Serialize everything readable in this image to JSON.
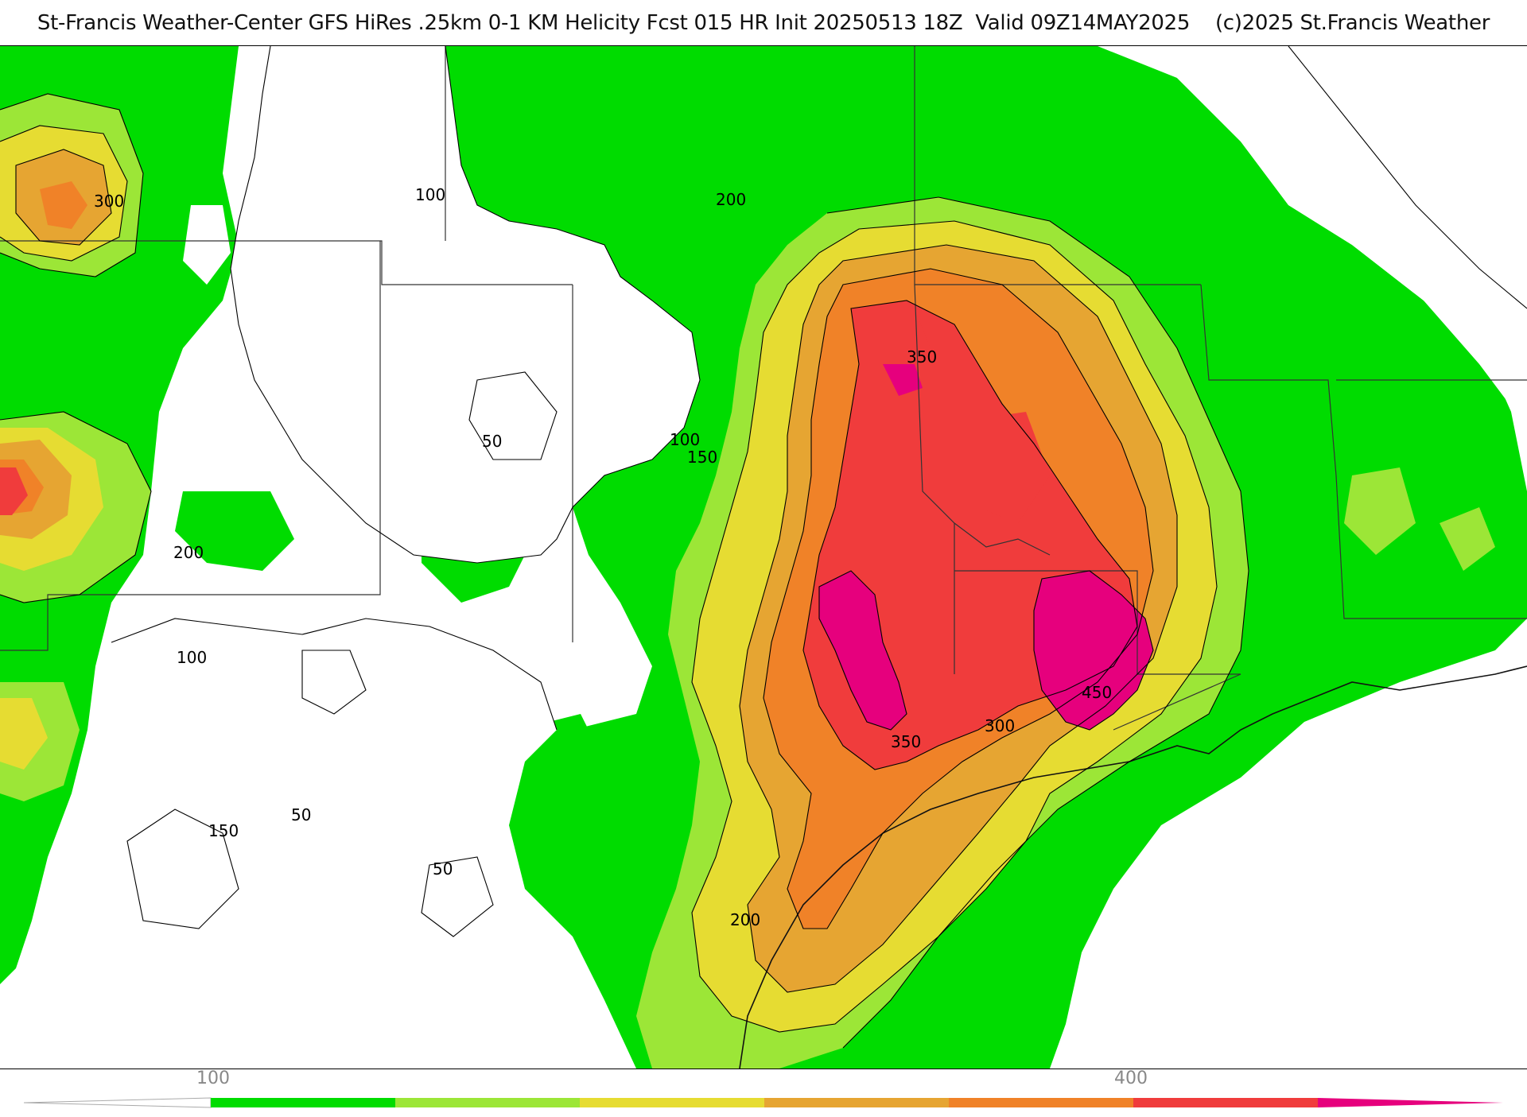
{
  "title": "St-Francis Weather-Center GFS HiRes .25km 0-1 KM Helicity Fcst 015 HR Init 20250513 18Z  Valid 09Z14MAY2025    (c)2025 St.Francis Weather",
  "colors": {
    "c100": "#00dc00",
    "c150": "#9ce637",
    "c200": "#e6dc32",
    "c250": "#e6a532",
    "c300": "#f08228",
    "c350": "#f03c3c",
    "c400": "#e6007d",
    "background": "#ffffff",
    "contour": "#000000",
    "border": "#333333"
  },
  "contour_labels": [
    {
      "text": "300"
    },
    {
      "text": "100"
    },
    {
      "text": "200"
    },
    {
      "text": "350"
    },
    {
      "text": "50"
    },
    {
      "text": "100"
    },
    {
      "text": "150"
    },
    {
      "text": "200"
    },
    {
      "text": "100"
    },
    {
      "text": "450"
    },
    {
      "text": "300"
    },
    {
      "text": "350"
    },
    {
      "text": "50"
    },
    {
      "text": "150"
    },
    {
      "text": "50"
    },
    {
      "text": "200"
    }
  ],
  "colorbar": {
    "ticks": [
      {
        "label": "100"
      },
      {
        "label": "400"
      }
    ]
  }
}
